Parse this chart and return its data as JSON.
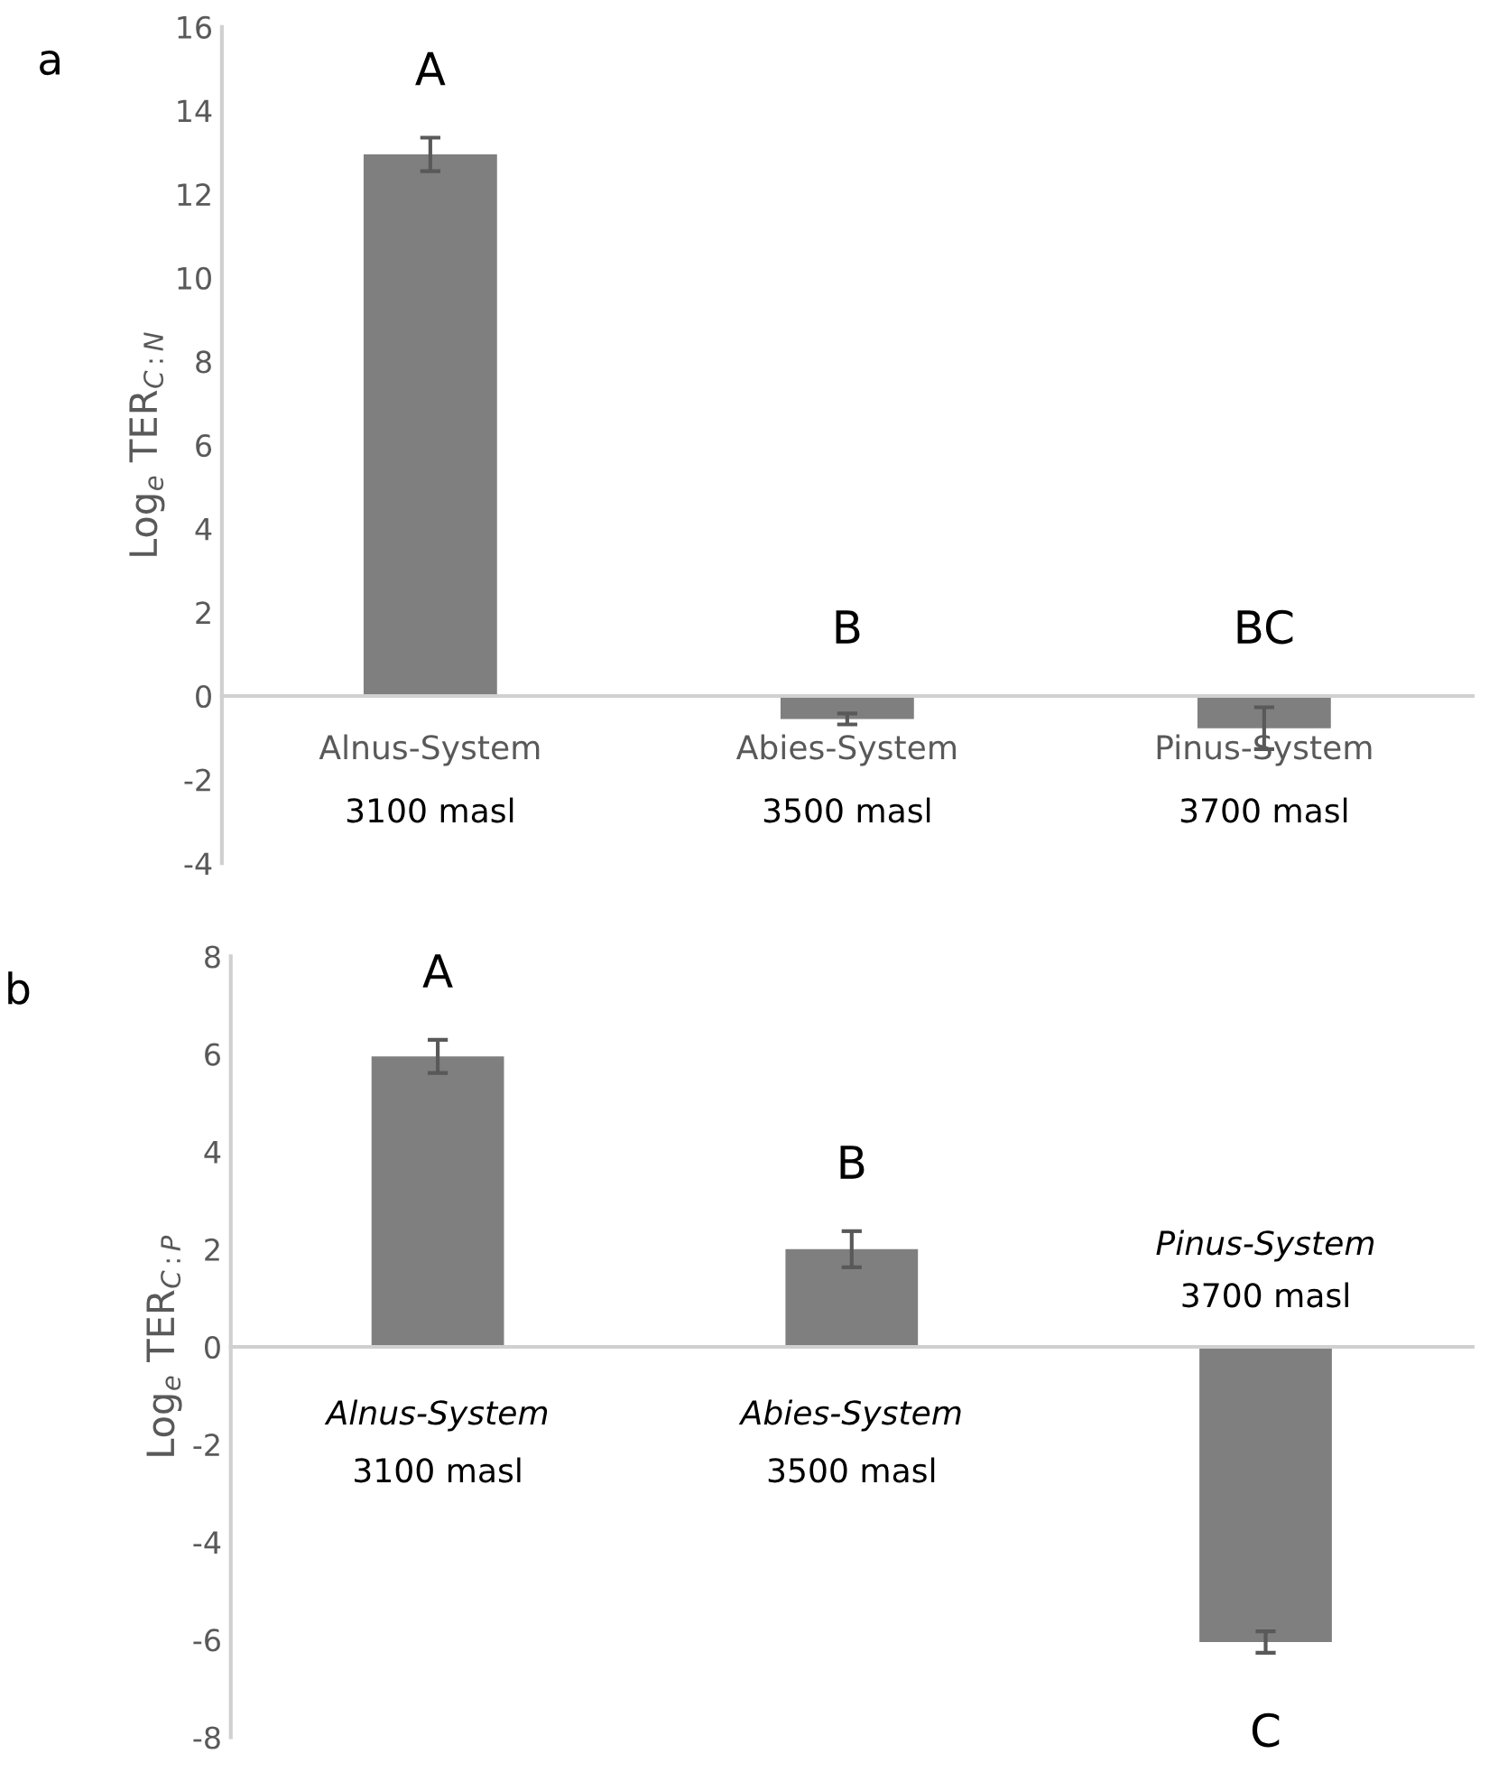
{
  "chart_data": [
    {
      "type": "bar",
      "title": "a",
      "ylabel": "Log$_{e}$ TER$_{C:N}$",
      "categories": [
        "Alnus-System",
        "Abies-System",
        "Pinus-System"
      ],
      "values": [
        12.95,
        -0.55,
        -0.77
      ],
      "errors": [
        0.4,
        0.13,
        0.5
      ],
      "color": "#7f7f7f",
      "ylim": [
        -4,
        16
      ],
      "yticks": [
        -4,
        -2,
        0,
        2,
        4,
        6,
        8,
        10,
        12,
        14,
        16
      ],
      "grid": false,
      "annotations": [
        "A",
        "B",
        "BC",
        "3100 masl",
        "3500 masl",
        "3700 masl"
      ]
    },
    {
      "type": "bar",
      "title": "b",
      "ylabel": "Log$_{e}$ TER$_{C:P}$",
      "categories": [
        "Alnus-System",
        "Abies-System",
        "Pinus-System"
      ],
      "values": [
        5.95,
        2.0,
        -6.05
      ],
      "errors": [
        0.34,
        0.37,
        0.22
      ],
      "color": "#7f7f7f",
      "ylim": [
        -8,
        8
      ],
      "yticks": [
        -8,
        -6,
        -4,
        -2,
        0,
        2,
        4,
        6,
        8
      ],
      "grid": false,
      "annotations": [
        "A",
        "B",
        "C",
        "3100 masl",
        "3500 masl",
        "3700 masl"
      ]
    }
  ]
}
